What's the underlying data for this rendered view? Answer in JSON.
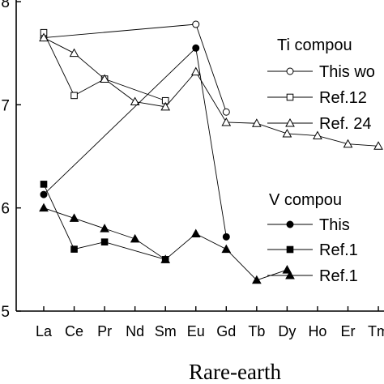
{
  "chart_data": {
    "type": "line",
    "xlabel": "Rare-earth",
    "ylabel": "",
    "ylim": [
      5,
      8
    ],
    "yticks": [
      {
        "value": 5,
        "label": "5"
      },
      {
        "value": 6,
        "label": "6"
      },
      {
        "value": 7,
        "label": "7"
      },
      {
        "value": 8,
        "label": "8"
      }
    ],
    "categories": [
      "La",
      "Ce",
      "Pr",
      "Nd",
      "Sm",
      "Eu",
      "Gd",
      "Tb",
      "Dy",
      "Ho",
      "Er",
      "Tm"
    ],
    "grid": false,
    "legend_position": "right",
    "legend_groups": [
      {
        "title": "Ti compou",
        "entries": [
          "This wo",
          "Ref.12",
          "Ref. 24"
        ]
      },
      {
        "title": "V compou",
        "entries": [
          "This",
          "Ref.1",
          "Ref.1"
        ]
      }
    ],
    "series": [
      {
        "group": "Ti",
        "marker": "open-circle",
        "points": [
          [
            "La",
            7.65
          ],
          [
            "Eu",
            7.78
          ],
          [
            "Gd",
            6.93
          ]
        ]
      },
      {
        "group": "Ti",
        "marker": "open-square",
        "points": [
          [
            "La",
            7.7
          ],
          [
            "Ce",
            7.09
          ],
          [
            "Pr",
            7.25
          ],
          [
            "Sm",
            7.04
          ]
        ]
      },
      {
        "group": "Ti",
        "marker": "open-triangle",
        "points": [
          [
            "La",
            7.65
          ],
          [
            "Ce",
            7.5
          ],
          [
            "Pr",
            7.25
          ],
          [
            "Nd",
            7.03
          ],
          [
            "Sm",
            6.98
          ],
          [
            "Eu",
            7.32
          ],
          [
            "Gd",
            6.83
          ],
          [
            "Tb",
            6.82
          ],
          [
            "Dy",
            6.72
          ],
          [
            "Ho",
            6.7
          ],
          [
            "Er",
            6.62
          ],
          [
            "Tm",
            6.6
          ]
        ]
      },
      {
        "group": "V",
        "marker": "filled-circle",
        "points": [
          [
            "La",
            6.13
          ],
          [
            "Eu",
            7.55
          ],
          [
            "Gd",
            5.72
          ]
        ]
      },
      {
        "group": "V",
        "marker": "filled-square",
        "points": [
          [
            "La",
            6.23
          ],
          [
            "Ce",
            5.6
          ],
          [
            "Pr",
            5.67
          ],
          [
            "Sm",
            5.5
          ]
        ]
      },
      {
        "group": "V",
        "marker": "filled-triangle",
        "points": [
          [
            "La",
            6.0
          ],
          [
            "Ce",
            5.9
          ],
          [
            "Pr",
            5.8
          ],
          [
            "Nd",
            5.7
          ],
          [
            "Sm",
            5.5
          ],
          [
            "Eu",
            5.75
          ],
          [
            "Gd",
            5.6
          ],
          [
            "Tb",
            5.3
          ],
          [
            "Dy",
            5.4
          ]
        ]
      }
    ]
  }
}
